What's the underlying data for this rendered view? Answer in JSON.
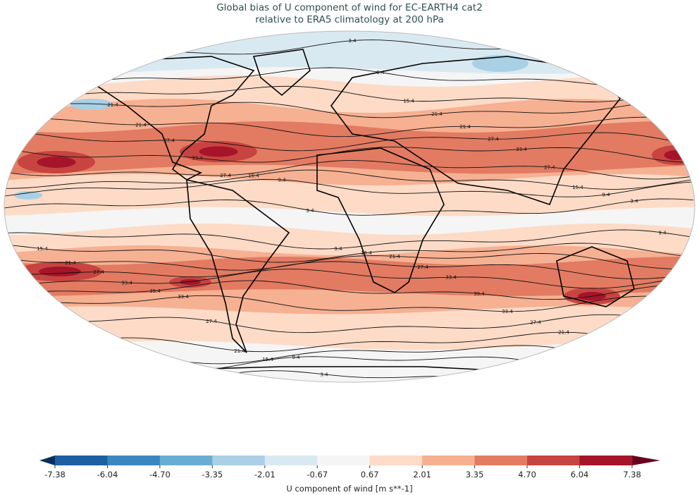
{
  "title": {
    "line1": "Global bias of U component of wind for EC-EARTH4 cat2",
    "line2": "relative to ERA5 climatology at 200 hPa"
  },
  "chart_data": {
    "type": "heatmap",
    "projection": "robinson",
    "variable": "U component of wind bias",
    "contour_levels": [
      3.4,
      9.4,
      15.4,
      21.4,
      27.4,
      33.4,
      39.4
    ],
    "contour_labels": [
      "3.4",
      "9.4",
      "15.4",
      "21.4",
      "27.4",
      "33.4",
      "39.4"
    ],
    "colorbar": {
      "label": "U component of wind [m s**-1]",
      "ticks": [
        "-7.38",
        "-6.04",
        "-4.70",
        "-3.35",
        "-2.01",
        "-0.67",
        "0.67",
        "2.01",
        "3.35",
        "4.70",
        "6.04",
        "7.38"
      ],
      "range": [
        -7.38,
        7.38
      ],
      "extend": "both",
      "colors": [
        "#1d5fa2",
        "#3a87bf",
        "#6aadd4",
        "#a9d0e5",
        "#d9e9f1",
        "#f5f5f5",
        "#fddbc7",
        "#f6b092",
        "#e27b62",
        "#c84440",
        "#a51429"
      ],
      "under_color": "#053061",
      "over_color": "#67001f"
    }
  }
}
